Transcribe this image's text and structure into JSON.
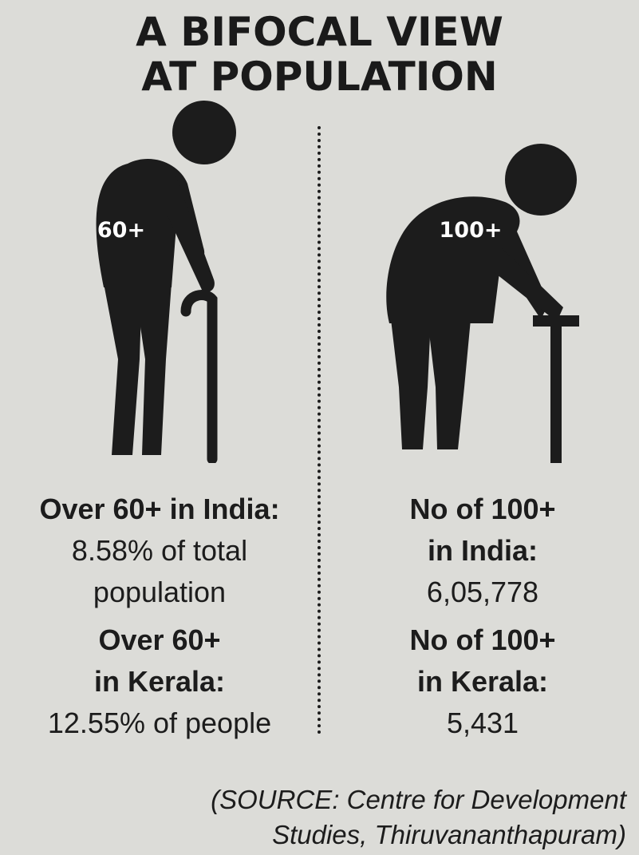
{
  "title": {
    "line1": "A BIFOCAL VIEW",
    "line2": "AT POPULATION"
  },
  "left": {
    "figure_label": "60+",
    "india_heading": "Over 60+ in India:",
    "india_value_line1": "8.58% of total",
    "india_value_line2": "population",
    "kerala_heading_line1": "Over 60+",
    "kerala_heading_line2": "in Kerala:",
    "kerala_value": "12.55% of people"
  },
  "right": {
    "figure_label": "100+",
    "india_heading_line1": "No of 100+",
    "india_heading_line2": "in India:",
    "india_value": "6,05,778",
    "kerala_heading_line1": "No of 100+",
    "kerala_heading_line2": "in Kerala:",
    "kerala_value": "5,431"
  },
  "source": {
    "line1": "(SOURCE: Centre for Development",
    "line2": "Studies, Thiruvananthapuram)"
  },
  "colors": {
    "background": "#dcdcd8",
    "ink": "#1c1c1c",
    "label": "#ffffff"
  }
}
